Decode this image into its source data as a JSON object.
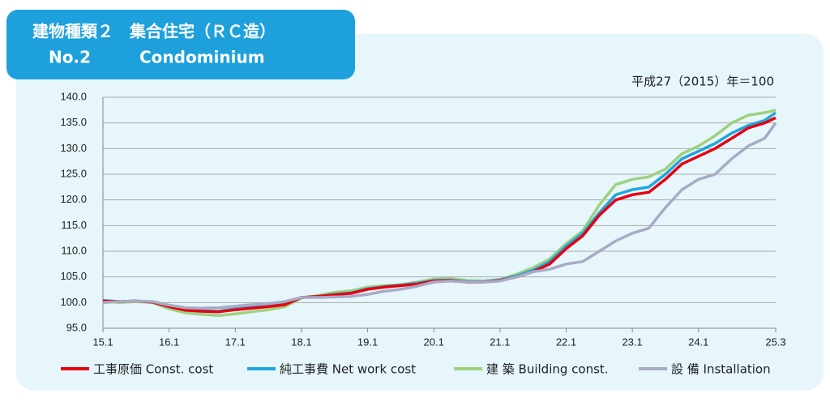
{
  "chart_data": {
    "type": "line",
    "title": "建物種類２　集合住宅（ＲＣ造）",
    "subtitle": "No.2　　　Condominium",
    "note": "平成27（2015）年＝100",
    "x": [
      0,
      3,
      6,
      9,
      12,
      15,
      18,
      21,
      24,
      27,
      30,
      33,
      36,
      39,
      42,
      45,
      48,
      51,
      54,
      57,
      60,
      63,
      66,
      69,
      72,
      75,
      78,
      81,
      84,
      87,
      90,
      93,
      96,
      99,
      102,
      105,
      108,
      111,
      114,
      117,
      120,
      122
    ],
    "xlim": [
      0,
      122
    ],
    "xticks": [
      {
        "value": 0,
        "label": "15.1"
      },
      {
        "value": 12,
        "label": "16.1"
      },
      {
        "value": 24,
        "label": "17.1"
      },
      {
        "value": 36,
        "label": "18.1"
      },
      {
        "value": 48,
        "label": "19.1"
      },
      {
        "value": 60,
        "label": "20.1"
      },
      {
        "value": 72,
        "label": "21.1"
      },
      {
        "value": 84,
        "label": "22.1"
      },
      {
        "value": 96,
        "label": "23.1"
      },
      {
        "value": 108,
        "label": "24.1"
      },
      {
        "value": 122,
        "label": "25.3"
      }
    ],
    "ylim": [
      95,
      140
    ],
    "yticks": [
      {
        "value": 95,
        "label": "95.0"
      },
      {
        "value": 100,
        "label": "100.0"
      },
      {
        "value": 105,
        "label": "105.0"
      },
      {
        "value": 110,
        "label": "110.0"
      },
      {
        "value": 115,
        "label": "115.0"
      },
      {
        "value": 120,
        "label": "120.0"
      },
      {
        "value": 125,
        "label": "125.0"
      },
      {
        "value": 130,
        "label": "130.0"
      },
      {
        "value": 135,
        "label": "135.0"
      },
      {
        "value": 140,
        "label": "140.0"
      }
    ],
    "grid": true,
    "series": [
      {
        "name": "工事原価 Const. cost",
        "color": "#e60012",
        "values": [
          100.3,
          100.2,
          100.3,
          100.1,
          99.2,
          98.5,
          98.3,
          98.2,
          98.6,
          98.9,
          99.2,
          99.6,
          101.0,
          101.2,
          101.5,
          101.8,
          102.6,
          103.0,
          103.3,
          103.6,
          104.2,
          104.3,
          104.0,
          104.0,
          104.3,
          105.0,
          106.0,
          107.5,
          110.5,
          113.0,
          117.0,
          120.0,
          121.0,
          121.5,
          124.0,
          127.0,
          128.5,
          130.0,
          132.0,
          134.0,
          135.0,
          136.0
        ]
      },
      {
        "name": "純工事費 Net work cost",
        "color": "#1ea7dc",
        "values": [
          100.4,
          100.2,
          100.3,
          100.1,
          99.3,
          98.6,
          98.4,
          98.3,
          98.8,
          99.1,
          99.4,
          99.8,
          101.0,
          101.2,
          101.6,
          101.9,
          102.7,
          103.1,
          103.4,
          103.8,
          104.3,
          104.4,
          104.1,
          104.1,
          104.4,
          105.2,
          106.3,
          108.0,
          111.0,
          113.5,
          117.5,
          121.0,
          122.0,
          122.5,
          125.0,
          128.0,
          129.5,
          131.0,
          133.0,
          134.5,
          135.5,
          137.0
        ]
      },
      {
        "name": "建 築 Building const.",
        "color": "#9ed17f",
        "values": [
          100.3,
          100.0,
          100.2,
          100.0,
          98.8,
          98.0,
          97.7,
          97.5,
          97.8,
          98.2,
          98.6,
          99.2,
          100.9,
          101.4,
          102.0,
          102.3,
          103.0,
          103.3,
          103.5,
          104.0,
          104.6,
          104.7,
          104.3,
          104.2,
          104.5,
          105.5,
          106.8,
          108.5,
          111.5,
          114.0,
          119.0,
          123.0,
          124.0,
          124.5,
          126.0,
          129.0,
          130.5,
          132.5,
          135.0,
          136.5,
          137.0,
          137.5
        ]
      },
      {
        "name": "設 備 Installation",
        "color": "#a9aac5",
        "values": [
          100.0,
          100.2,
          100.3,
          100.2,
          99.5,
          99.0,
          98.9,
          99.0,
          99.3,
          99.6,
          99.8,
          100.2,
          101.0,
          101.0,
          101.1,
          101.2,
          101.6,
          102.2,
          102.6,
          103.2,
          104.0,
          104.2,
          104.0,
          104.0,
          104.2,
          105.0,
          106.0,
          106.5,
          107.5,
          108.0,
          110.0,
          112.0,
          113.5,
          114.5,
          118.5,
          122.0,
          124.0,
          125.0,
          128.0,
          130.5,
          132.0,
          135.0
        ]
      }
    ]
  }
}
